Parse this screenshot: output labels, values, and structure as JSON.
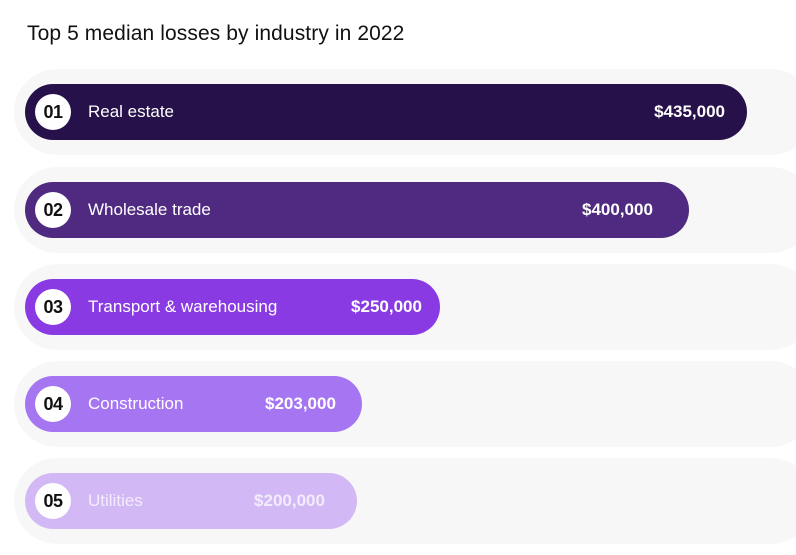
{
  "chart_data": {
    "type": "bar",
    "orientation": "horizontal",
    "title": "Top 5 median losses by industry in 2022",
    "ranks": [
      "01",
      "02",
      "03",
      "04",
      "05"
    ],
    "categories": [
      "Real estate",
      "Wholesale trade",
      "Transport & warehousing",
      "Construction",
      "Utilities"
    ],
    "values": [
      435000,
      400000,
      250000,
      203000,
      200000
    ],
    "value_labels": [
      "$435,000",
      "$400,000",
      "$250,000",
      "$203,000",
      "$200,000"
    ],
    "colors": [
      "#26114a",
      "#4f2a80",
      "#8a3ae3",
      "#a575f2",
      "#d2b9f6"
    ],
    "grid": false,
    "legend": "none"
  }
}
